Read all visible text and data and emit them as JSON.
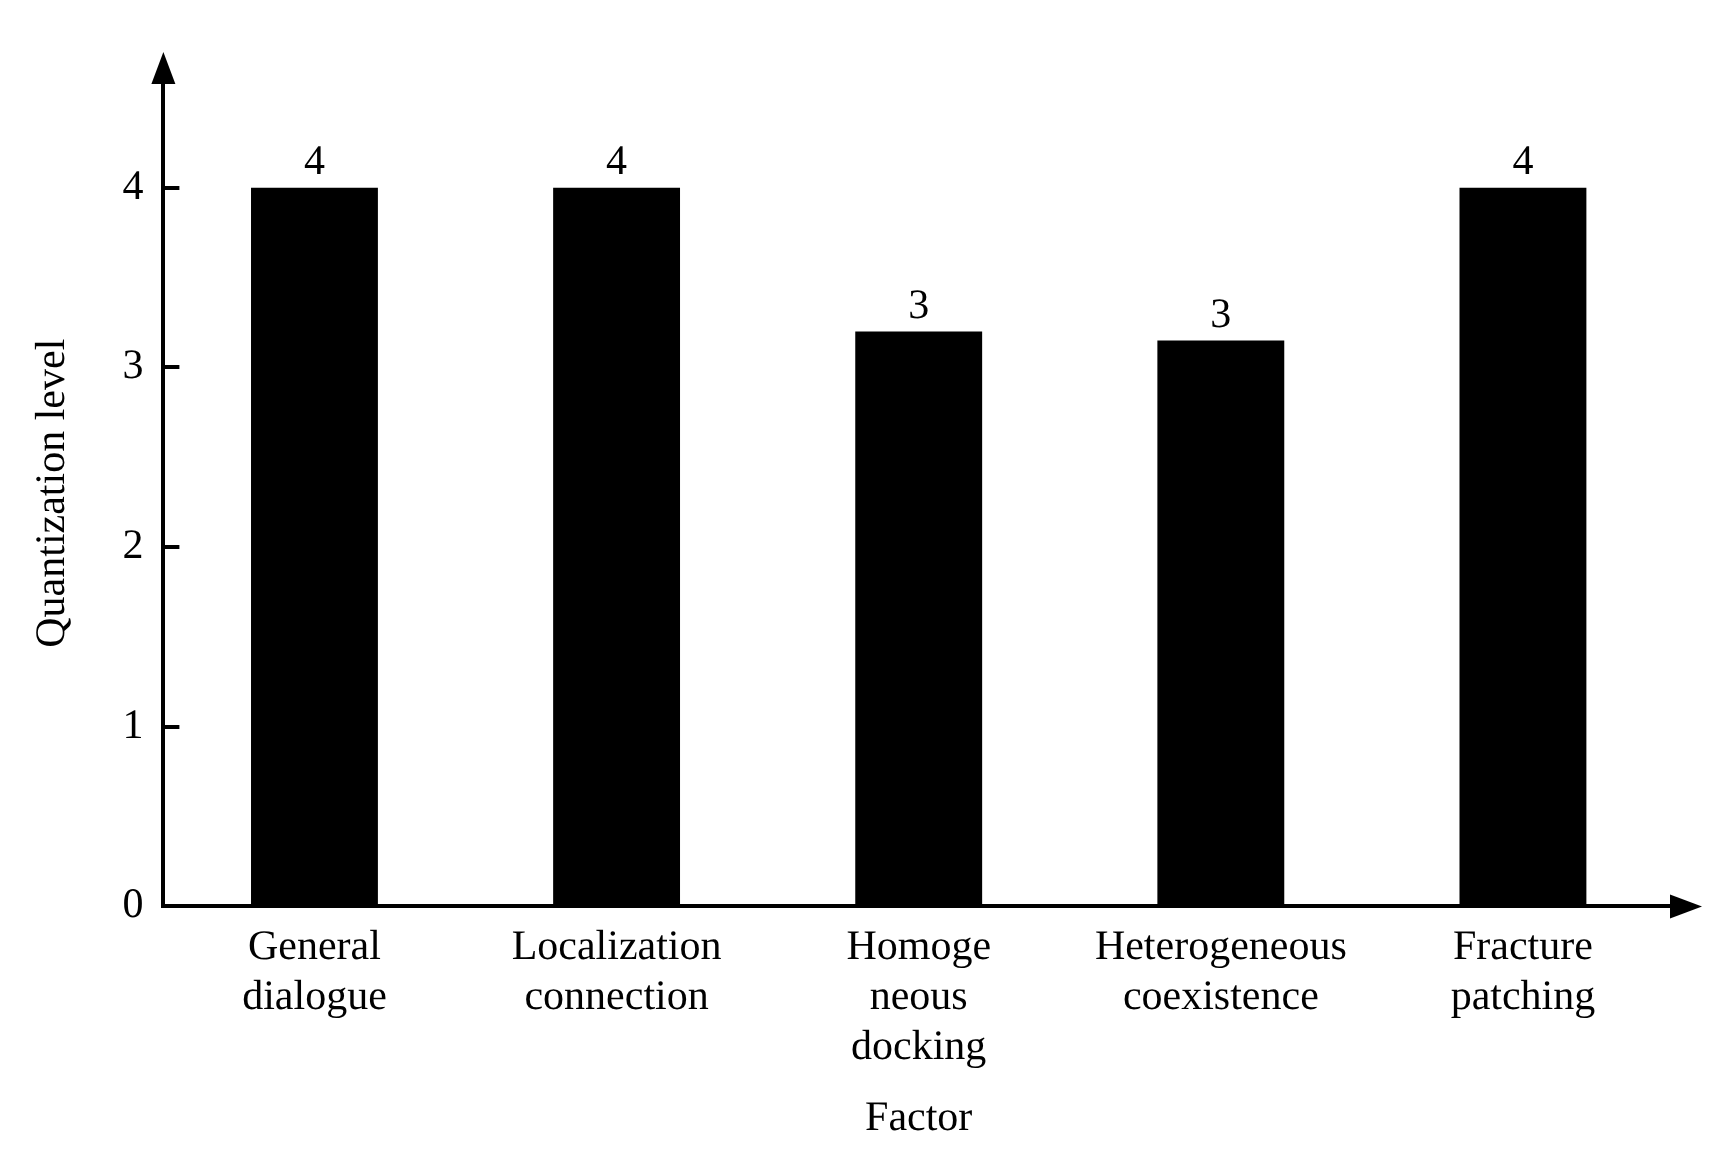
{
  "chart_data": {
    "type": "bar",
    "xlabel": "Factor",
    "ylabel": "Quantization level",
    "categories": [
      "General dialogue",
      "Localization connection",
      "Homoge neous docking",
      "Heterogeneous coexistence",
      "Fracture patching"
    ],
    "values": [
      4,
      4,
      3.2,
      3.15,
      4
    ],
    "value_labels": [
      "4",
      "4",
      "3",
      "3",
      "4"
    ],
    "color": "#000000",
    "ylim": [
      0,
      4.6
    ],
    "yticks": [
      0,
      1,
      2,
      3,
      4
    ],
    "grid": false,
    "legend": false
  }
}
